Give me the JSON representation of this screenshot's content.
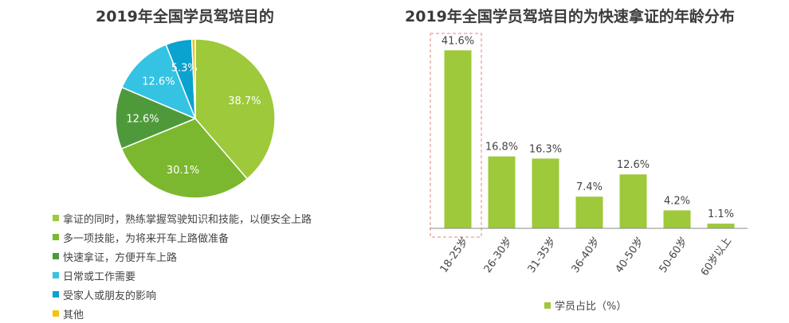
{
  "chart_data": [
    {
      "type": "pie",
      "title": "2019年全国学员驾培目的",
      "slices": [
        {
          "label": "拿证的同时，熟练掌握驾驶知识和技能，以便安全上路",
          "value": 38.7,
          "value_label": "38.7%",
          "color": "#9dc93a"
        },
        {
          "label": "多一项技能，为将来开车上路做准备",
          "value": 30.1,
          "value_label": "30.1%",
          "color": "#7cb82f"
        },
        {
          "label": "快速拿证，方便开车上路",
          "value": 12.6,
          "value_label": "12.6%",
          "color": "#4e9a3a"
        },
        {
          "label": "日常或工作需要",
          "value": 12.6,
          "value_label": "12.6%",
          "color": "#35c3e3"
        },
        {
          "label": "受家人或朋友的影响",
          "value": 5.3,
          "value_label": "5.3%",
          "color": "#0aa2cf"
        },
        {
          "label": "其他",
          "value": 0.7,
          "value_label": "",
          "color": "#f1c40f"
        }
      ]
    },
    {
      "type": "bar",
      "title": "2019年全国学员驾培目的为快速拿证的年龄分布",
      "categories": [
        "18-25岁",
        "26-30岁",
        "31-35岁",
        "36-40岁",
        "40-50岁",
        "50-60岁",
        "60岁以上"
      ],
      "series": [
        {
          "name": "学员占比（%）",
          "values": [
            41.6,
            16.8,
            16.3,
            7.4,
            12.6,
            4.2,
            1.1
          ],
          "color": "#9dc93a"
        }
      ],
      "value_labels": [
        "41.6%",
        "16.8%",
        "16.3%",
        "7.4%",
        "12.6%",
        "4.2%",
        "1.1%"
      ],
      "ylim": [
        0,
        45
      ],
      "highlight_category": "18-25岁",
      "legend_position": "bottom"
    }
  ]
}
